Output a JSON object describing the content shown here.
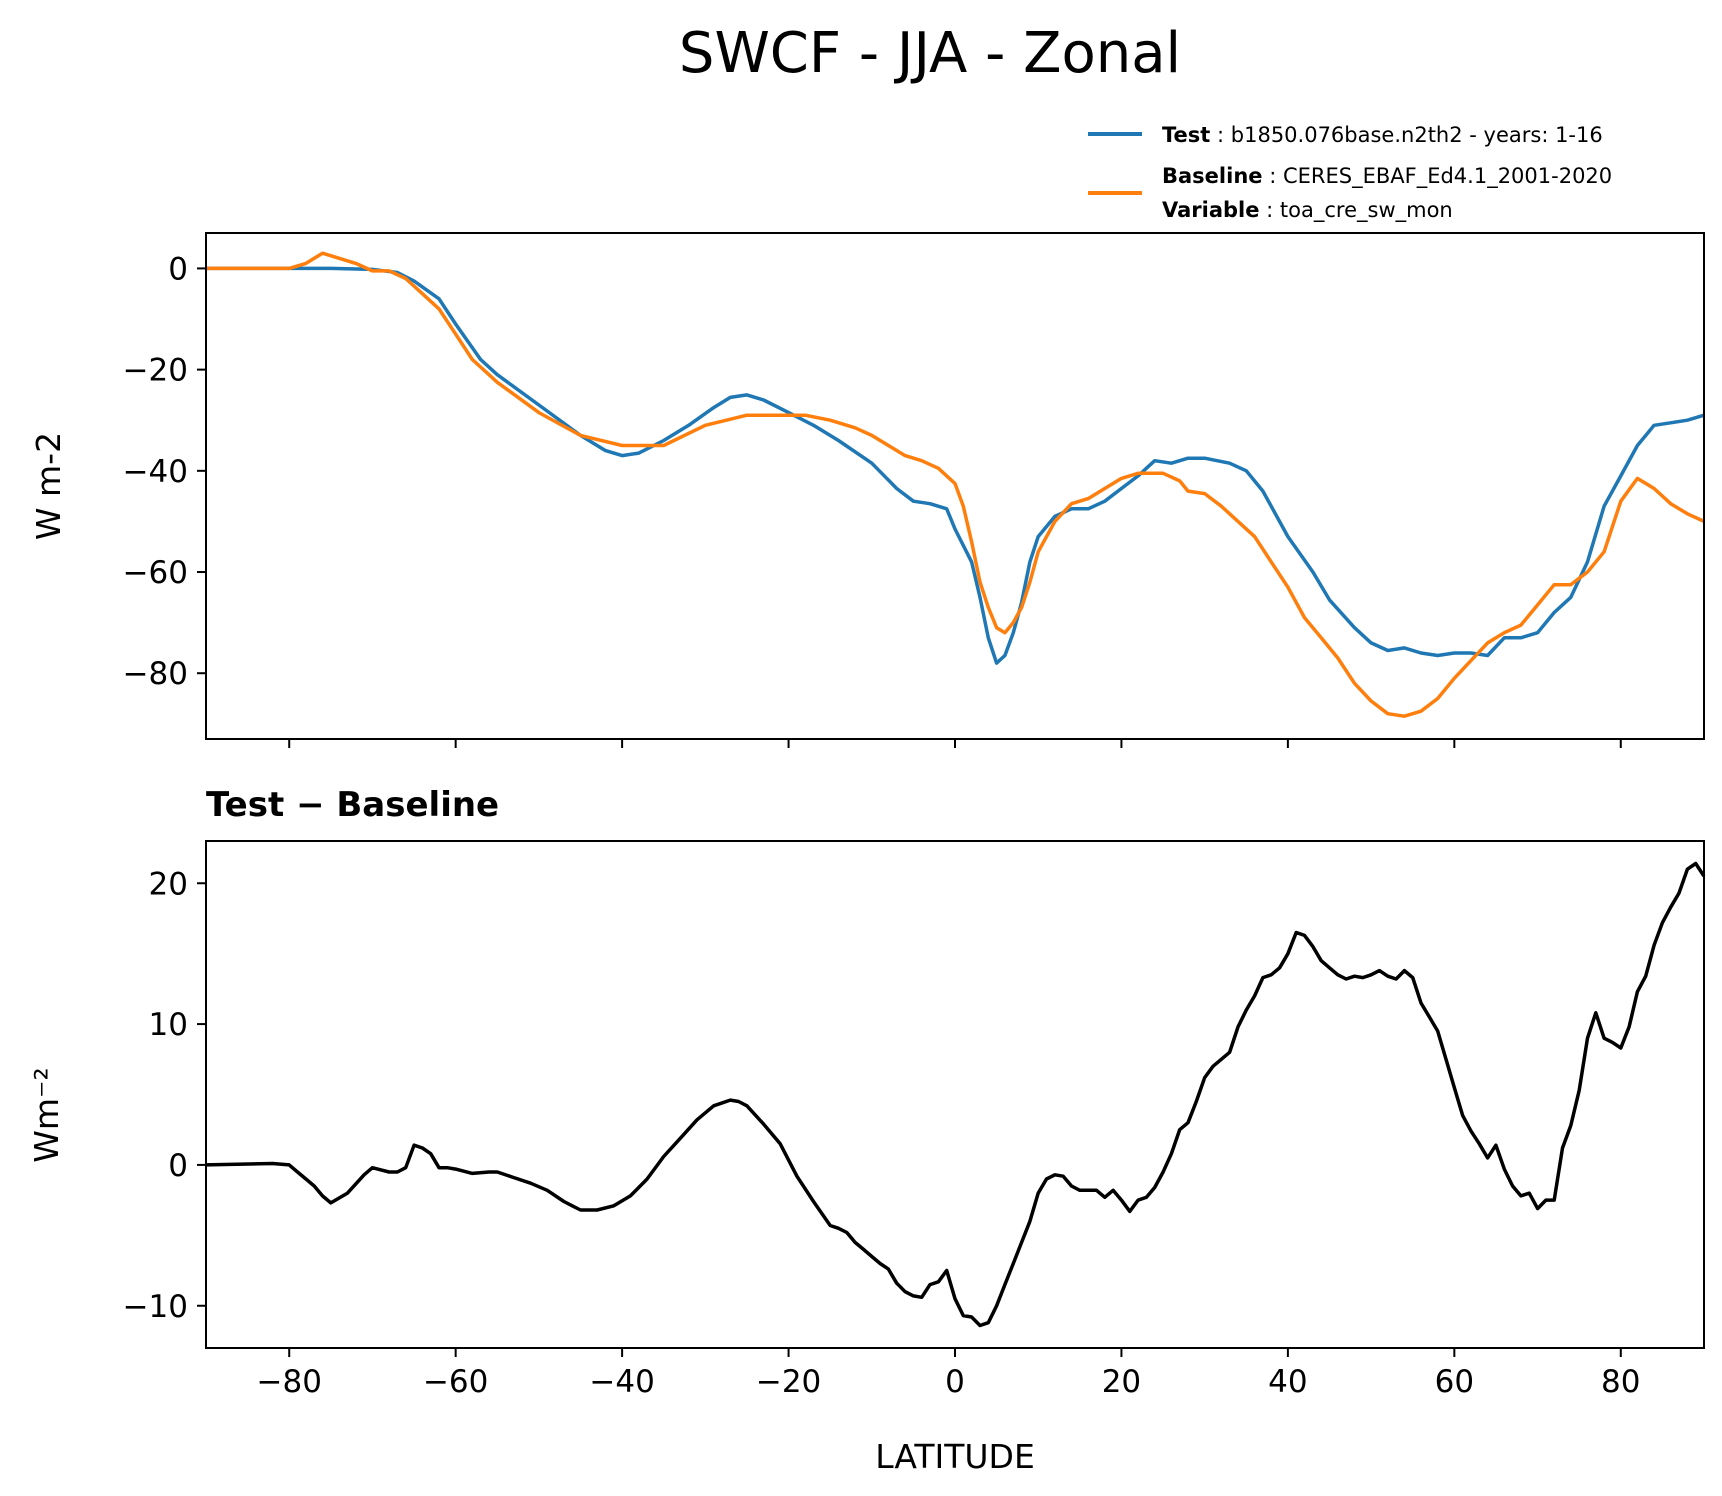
{
  "title": "SWCF - JJA - Zonal",
  "legend": {
    "test": {
      "key": "Test",
      "value": "b1850.076base.n2th2 - years: 1-16",
      "color": "#1f77b4"
    },
    "baseline": {
      "key": "Baseline",
      "value": "CERES_EBAF_Ed4.1_2001-2020",
      "color": "#ff7f0e"
    },
    "variable": {
      "key": "Variable",
      "value": "toa_cre_sw_mon"
    },
    "separator": " : "
  },
  "chart_data": [
    {
      "type": "line",
      "panel": "top",
      "title": "",
      "xlabel": "",
      "ylabel": "W m-2",
      "xlim": [
        -90,
        90
      ],
      "ylim": [
        -93,
        7
      ],
      "xticks": [
        -80,
        -60,
        -40,
        -20,
        0,
        20,
        40,
        60,
        80
      ],
      "yticks": [
        0,
        -20,
        -40,
        -60,
        -80
      ],
      "ytick_labels": [
        "0",
        "−20",
        "−40",
        "−60",
        "−80"
      ],
      "legend_position": "above-right",
      "series": [
        {
          "name": "Test",
          "color": "#1f77b4",
          "x": [
            -90,
            -80,
            -75,
            -70,
            -67,
            -65,
            -62,
            -60,
            -57,
            -55,
            -50,
            -45,
            -42,
            -40,
            -38,
            -35,
            -32,
            -29,
            -27,
            -25,
            -23,
            -20,
            -17,
            -14,
            -10,
            -7,
            -5,
            -3,
            -1,
            0,
            2,
            3,
            4,
            5,
            6,
            7,
            8,
            9,
            10,
            12,
            14,
            16,
            18,
            20,
            22,
            24,
            26,
            28,
            30,
            33,
            35,
            37,
            40,
            43,
            45,
            48,
            50,
            52,
            54,
            56,
            58,
            60,
            62,
            64,
            66,
            68,
            70,
            72,
            74,
            76,
            78,
            80,
            82,
            84,
            86,
            88,
            90
          ],
          "values": [
            0,
            0,
            0,
            -0.2,
            -0.8,
            -2.5,
            -6,
            -11,
            -18,
            -21,
            -27,
            -33,
            -36,
            -37,
            -36.5,
            -34,
            -31,
            -27.5,
            -25.5,
            -25,
            -26,
            -28.5,
            -31,
            -34,
            -38.5,
            -43.5,
            -46,
            -46.5,
            -47.5,
            -51.5,
            -58,
            -65,
            -73,
            -78,
            -76.5,
            -72,
            -66,
            -58,
            -53,
            -49,
            -47.5,
            -47.5,
            -46,
            -43.5,
            -41,
            -38,
            -38.5,
            -37.5,
            -37.5,
            -38.5,
            -40,
            -44,
            -53,
            -60,
            -65.5,
            -71,
            -74,
            -75.5,
            -75,
            -76,
            -76.5,
            -76,
            -76,
            -76.5,
            -73,
            -73,
            -72,
            -68,
            -65,
            -58,
            -47,
            -41,
            -35,
            -31,
            -30.5,
            -30,
            -29
          ]
        },
        {
          "name": "Baseline",
          "color": "#ff7f0e",
          "x": [
            -90,
            -80,
            -78,
            -76,
            -74,
            -72,
            -70,
            -68,
            -66,
            -64,
            -62,
            -60,
            -58,
            -55,
            -50,
            -45,
            -40,
            -35,
            -30,
            -25,
            -22,
            -18,
            -15,
            -12,
            -10,
            -8,
            -6,
            -4,
            -2,
            -1,
            0,
            1,
            2,
            3,
            4,
            5,
            6,
            7,
            8,
            9,
            10,
            12,
            14,
            16,
            18,
            20,
            22,
            25,
            27,
            28,
            30,
            32,
            34,
            36,
            38,
            40,
            42,
            44,
            46,
            48,
            50,
            52,
            54,
            56,
            58,
            60,
            62,
            64,
            66,
            68,
            70,
            72,
            74,
            76,
            78,
            80,
            82,
            84,
            86,
            88,
            90
          ],
          "values": [
            0,
            0,
            1,
            3,
            2,
            1,
            -0.5,
            -0.5,
            -2,
            -5,
            -8,
            -13,
            -18,
            -22.5,
            -28.5,
            -33,
            -35,
            -35,
            -31,
            -29,
            -29,
            -29,
            -30,
            -31.5,
            -33,
            -35,
            -37,
            -38,
            -39.5,
            -41,
            -42.5,
            -47,
            -54,
            -62,
            -67,
            -71,
            -72,
            -70,
            -67,
            -62,
            -56,
            -50,
            -46.5,
            -45.5,
            -43.5,
            -41.5,
            -40.5,
            -40.5,
            -42,
            -44,
            -44.5,
            -47,
            -50,
            -53,
            -58,
            -63,
            -69,
            -73,
            -77,
            -82,
            -85.5,
            -88,
            -88.5,
            -87.5,
            -85,
            -81,
            -77.5,
            -74,
            -72,
            -70.5,
            -66.5,
            -62.5,
            -62.5,
            -60,
            -56,
            -46,
            -41.5,
            -43.5,
            -46.5,
            -48.5,
            -50
          ]
        }
      ]
    },
    {
      "type": "line",
      "panel": "bottom",
      "title": "Test − Baseline",
      "xlabel": "LATITUDE",
      "ylabel": "Wm⁻²",
      "xlim": [
        -90,
        90
      ],
      "ylim": [
        -13,
        23
      ],
      "xticks": [
        -80,
        -60,
        -40,
        -20,
        0,
        20,
        40,
        60,
        80
      ],
      "xtick_labels": [
        "−80",
        "−60",
        "−40",
        "−20",
        "0",
        "20",
        "40",
        "60",
        "80"
      ],
      "yticks": [
        20,
        10,
        0,
        -10
      ],
      "ytick_labels": [
        "20",
        "10",
        "0",
        "−10"
      ],
      "series": [
        {
          "name": "Test - Baseline",
          "color": "#000000",
          "x": [
            -90,
            -82,
            -80,
            -79,
            -78,
            -77,
            -76,
            -75,
            -73,
            -71,
            -70,
            -68,
            -67,
            -66,
            -65,
            -64,
            -63,
            -62,
            -61,
            -60,
            -58,
            -56,
            -55,
            -53,
            -51,
            -49,
            -47,
            -46,
            -45,
            -43,
            -41,
            -39,
            -37,
            -35,
            -33,
            -31,
            -29,
            -27,
            -26,
            -25,
            -23,
            -21,
            -19,
            -17,
            -15,
            -14,
            -13,
            -12,
            -11,
            -10,
            -9,
            -8,
            -7,
            -6,
            -5,
            -4,
            -3,
            -2,
            -1,
            0,
            1,
            2,
            3,
            4,
            5,
            6,
            7,
            8,
            9,
            10,
            11,
            12,
            13,
            14,
            15,
            16,
            17,
            18,
            19,
            20,
            21,
            22,
            23,
            24,
            25,
            26,
            27,
            28,
            29,
            30,
            31,
            32,
            33,
            34,
            35,
            36,
            37,
            38,
            39,
            40,
            41,
            42,
            43,
            44,
            45,
            46,
            47,
            48,
            49,
            50,
            51,
            52,
            53,
            54,
            55,
            56,
            57,
            58,
            59,
            60,
            61,
            62,
            63,
            64,
            65,
            66,
            67,
            68,
            69,
            70,
            71,
            72,
            73,
            74,
            75,
            76,
            77,
            78,
            79,
            80,
            81,
            82,
            83,
            84,
            85,
            86,
            87,
            88,
            89,
            90
          ],
          "values": [
            0,
            0.1,
            0,
            -0.5,
            -1,
            -1.5,
            -2.2,
            -2.7,
            -2,
            -0.7,
            -0.2,
            -0.5,
            -0.5,
            -0.2,
            1.4,
            1.2,
            0.8,
            -0.2,
            -0.2,
            -0.3,
            -0.6,
            -0.5,
            -0.5,
            -0.9,
            -1.3,
            -1.8,
            -2.6,
            -2.9,
            -3.2,
            -3.2,
            -2.9,
            -2.2,
            -1,
            0.6,
            1.9,
            3.2,
            4.2,
            4.6,
            4.5,
            4.2,
            2.9,
            1.5,
            -0.8,
            -2.6,
            -4.3,
            -4.5,
            -4.8,
            -5.5,
            -6,
            -6.5,
            -7,
            -7.4,
            -8.4,
            -9,
            -9.3,
            -9.4,
            -8.5,
            -8.3,
            -7.5,
            -9.5,
            -10.7,
            -10.8,
            -11.4,
            -11.2,
            -10,
            -8.5,
            -7,
            -5.5,
            -4,
            -2,
            -1,
            -0.7,
            -0.8,
            -1.5,
            -1.8,
            -1.8,
            -1.8,
            -2.3,
            -1.8,
            -2.5,
            -3.3,
            -2.5,
            -2.3,
            -1.6,
            -0.5,
            0.8,
            2.5,
            3,
            4.5,
            6.2,
            7,
            7.5,
            8,
            9.8,
            11,
            12,
            13.3,
            13.5,
            14,
            15,
            16.5,
            16.3,
            15.5,
            14.5,
            14,
            13.5,
            13.2,
            13.4,
            13.3,
            13.5,
            13.8,
            13.4,
            13.2,
            13.8,
            13.3,
            11.5,
            10.5,
            9.5,
            7.5,
            5.5,
            3.5,
            2.4,
            1.5,
            0.5,
            1.4,
            -0.3,
            -1.5,
            -2.2,
            -2,
            -3.1,
            -2.5,
            -2.5,
            1.2,
            2.8,
            5.3,
            9,
            10.8,
            9,
            8.7,
            8.3,
            9.8,
            12.3,
            13.4,
            15.6,
            17.2,
            18.3,
            19.3,
            21,
            21.4,
            20.5
          ]
        }
      ]
    }
  ]
}
